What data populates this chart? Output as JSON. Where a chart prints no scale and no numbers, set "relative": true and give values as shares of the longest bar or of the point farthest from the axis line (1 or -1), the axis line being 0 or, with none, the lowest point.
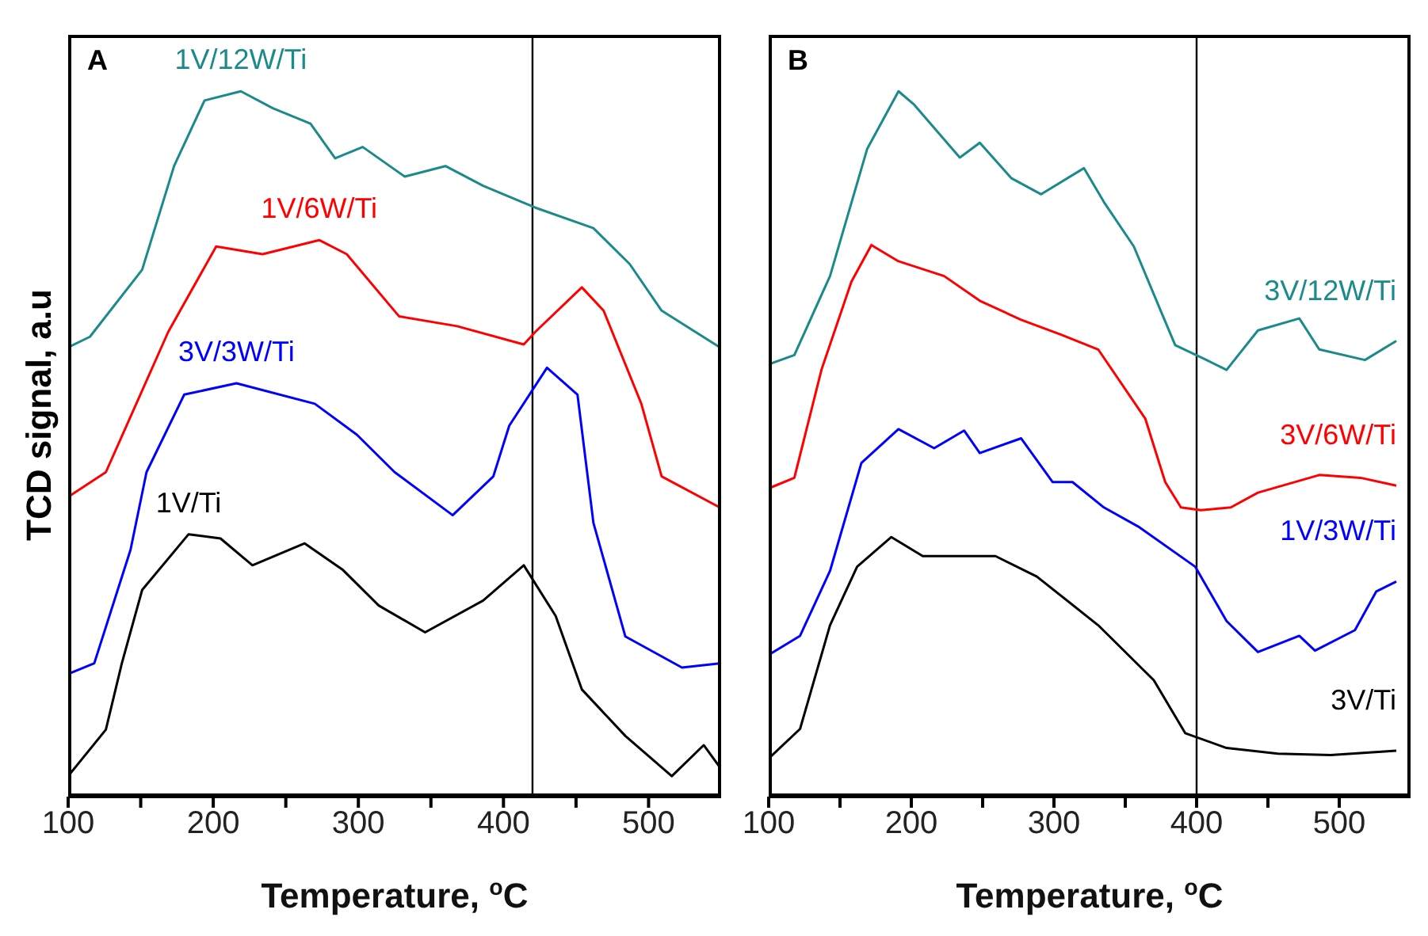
{
  "chart_data": [
    {
      "type": "line",
      "relative": true,
      "annotations": [
        "A"
      ],
      "xlabel": "Temperature, $^{o}$C",
      "ylabel": "TCD signal, a.u",
      "xlim": [
        100,
        550
      ],
      "xticks": [
        100,
        {
          "value": 150,
          "label": null
        },
        200,
        {
          "value": 250,
          "label": null
        },
        300,
        {
          "value": 350,
          "label": null
        },
        400,
        {
          "value": 450,
          "label": null
        },
        500
      ],
      "tick_labels": "x",
      "marker": "none",
      "ref_lines": [
        {
          "axis": "x",
          "value": 420,
          "color": "#000000"
        }
      ],
      "series": [
        {
          "name": "1V/12W/Ti",
          "color": "#1a8a8a",
          "x": [
            100,
            115,
            151,
            173,
            194,
            219,
            241,
            267,
            284,
            303,
            332,
            360,
            386,
            422,
            462,
            487,
            509,
            549
          ],
          "values": [
            0.637,
            0.652,
            0.747,
            0.894,
            0.987,
            1.0,
            0.976,
            0.954,
            0.905,
            0.921,
            0.879,
            0.894,
            0.866,
            0.835,
            0.806,
            0.755,
            0.689,
            0.637
          ]
        },
        {
          "name": "1V/6W/Ti",
          "color": "#ff0000",
          "x": [
            100,
            126,
            169,
            202,
            234,
            273,
            292,
            328,
            368,
            414,
            422,
            454,
            469,
            495,
            509,
            549
          ],
          "values": [
            0.425,
            0.46,
            0.659,
            0.78,
            0.769,
            0.789,
            0.769,
            0.681,
            0.667,
            0.641,
            0.659,
            0.722,
            0.689,
            0.557,
            0.454,
            0.41
          ]
        },
        {
          "name": "3V/3W/Ti",
          "color": "#0000ff",
          "x": [
            100,
            118,
            143,
            154,
            180,
            216,
            270,
            299,
            325,
            365,
            393,
            404,
            430,
            451,
            462,
            484,
            523,
            549
          ],
          "values": [
            0.174,
            0.189,
            0.35,
            0.46,
            0.57,
            0.586,
            0.557,
            0.513,
            0.46,
            0.399,
            0.454,
            0.526,
            0.608,
            0.57,
            0.388,
            0.227,
            0.183,
            0.189
          ]
        },
        {
          "name": "1V/Ti",
          "color": "#000000",
          "x": [
            100,
            126,
            137,
            151,
            183,
            205,
            227,
            263,
            289,
            314,
            346,
            386,
            414,
            436,
            454,
            484,
            516,
            538,
            549
          ],
          "values": [
            0.029,
            0.095,
            0.189,
            0.293,
            0.372,
            0.366,
            0.328,
            0.359,
            0.322,
            0.271,
            0.233,
            0.278,
            0.328,
            0.256,
            0.152,
            0.086,
            0.029,
            0.073,
            0.042
          ]
        }
      ]
    },
    {
      "type": "line",
      "relative": true,
      "annotations": [
        "B"
      ],
      "xlabel": "Temperature, $^{o}$C",
      "xlim": [
        100,
        550
      ],
      "xticks": [
        100,
        {
          "value": 150,
          "label": null
        },
        200,
        {
          "value": 250,
          "label": null
        },
        300,
        {
          "value": 350,
          "label": null
        },
        400,
        {
          "value": 450,
          "label": null
        },
        500
      ],
      "tick_labels": "x",
      "marker": "none",
      "ref_lines": [
        {
          "axis": "x",
          "value": 400,
          "color": "#000000"
        }
      ],
      "series": [
        {
          "name": "3V/12W/Ti",
          "color": "#1a8a8a",
          "x": [
            100,
            118,
            143,
            169,
            191,
            202,
            234,
            248,
            270,
            291,
            321,
            335,
            356,
            375,
            385,
            407,
            421,
            443,
            472,
            486,
            518,
            540
          ],
          "values": [
            0.613,
            0.626,
            0.738,
            0.918,
            1.0,
            0.981,
            0.906,
            0.927,
            0.877,
            0.854,
            0.891,
            0.843,
            0.78,
            0.688,
            0.64,
            0.619,
            0.605,
            0.661,
            0.678,
            0.634,
            0.619,
            0.646
          ]
        },
        {
          "name": "3V/6W/Ti",
          "color": "#ff0000",
          "x": [
            100,
            118,
            137,
            158,
            172,
            191,
            223,
            248,
            277,
            305,
            331,
            364,
            378,
            389,
            403,
            424,
            443,
            486,
            515,
            540
          ],
          "values": [
            0.437,
            0.452,
            0.605,
            0.73,
            0.782,
            0.759,
            0.738,
            0.703,
            0.676,
            0.655,
            0.634,
            0.536,
            0.446,
            0.41,
            0.406,
            0.41,
            0.431,
            0.456,
            0.452,
            0.441
          ]
        },
        {
          "name": "1V/3W/Ti",
          "color": "#0000ff",
          "x": [
            100,
            122,
            143,
            165,
            191,
            216,
            237,
            248,
            277,
            299,
            313,
            335,
            359,
            399,
            421,
            443,
            472,
            483,
            511,
            526,
            540
          ],
          "values": [
            0.201,
            0.228,
            0.32,
            0.473,
            0.521,
            0.494,
            0.519,
            0.487,
            0.508,
            0.446,
            0.446,
            0.41,
            0.383,
            0.326,
            0.249,
            0.205,
            0.228,
            0.207,
            0.236,
            0.291,
            0.305
          ]
        },
        {
          "name": "3V/Ti",
          "color": "#000000",
          "x": [
            100,
            122,
            143,
            162,
            186,
            208,
            259,
            288,
            331,
            370,
            392,
            421,
            457,
            494,
            540
          ],
          "values": [
            0.054,
            0.096,
            0.243,
            0.326,
            0.368,
            0.341,
            0.341,
            0.312,
            0.243,
            0.165,
            0.09,
            0.069,
            0.061,
            0.059,
            0.065
          ]
        }
      ]
    }
  ]
}
